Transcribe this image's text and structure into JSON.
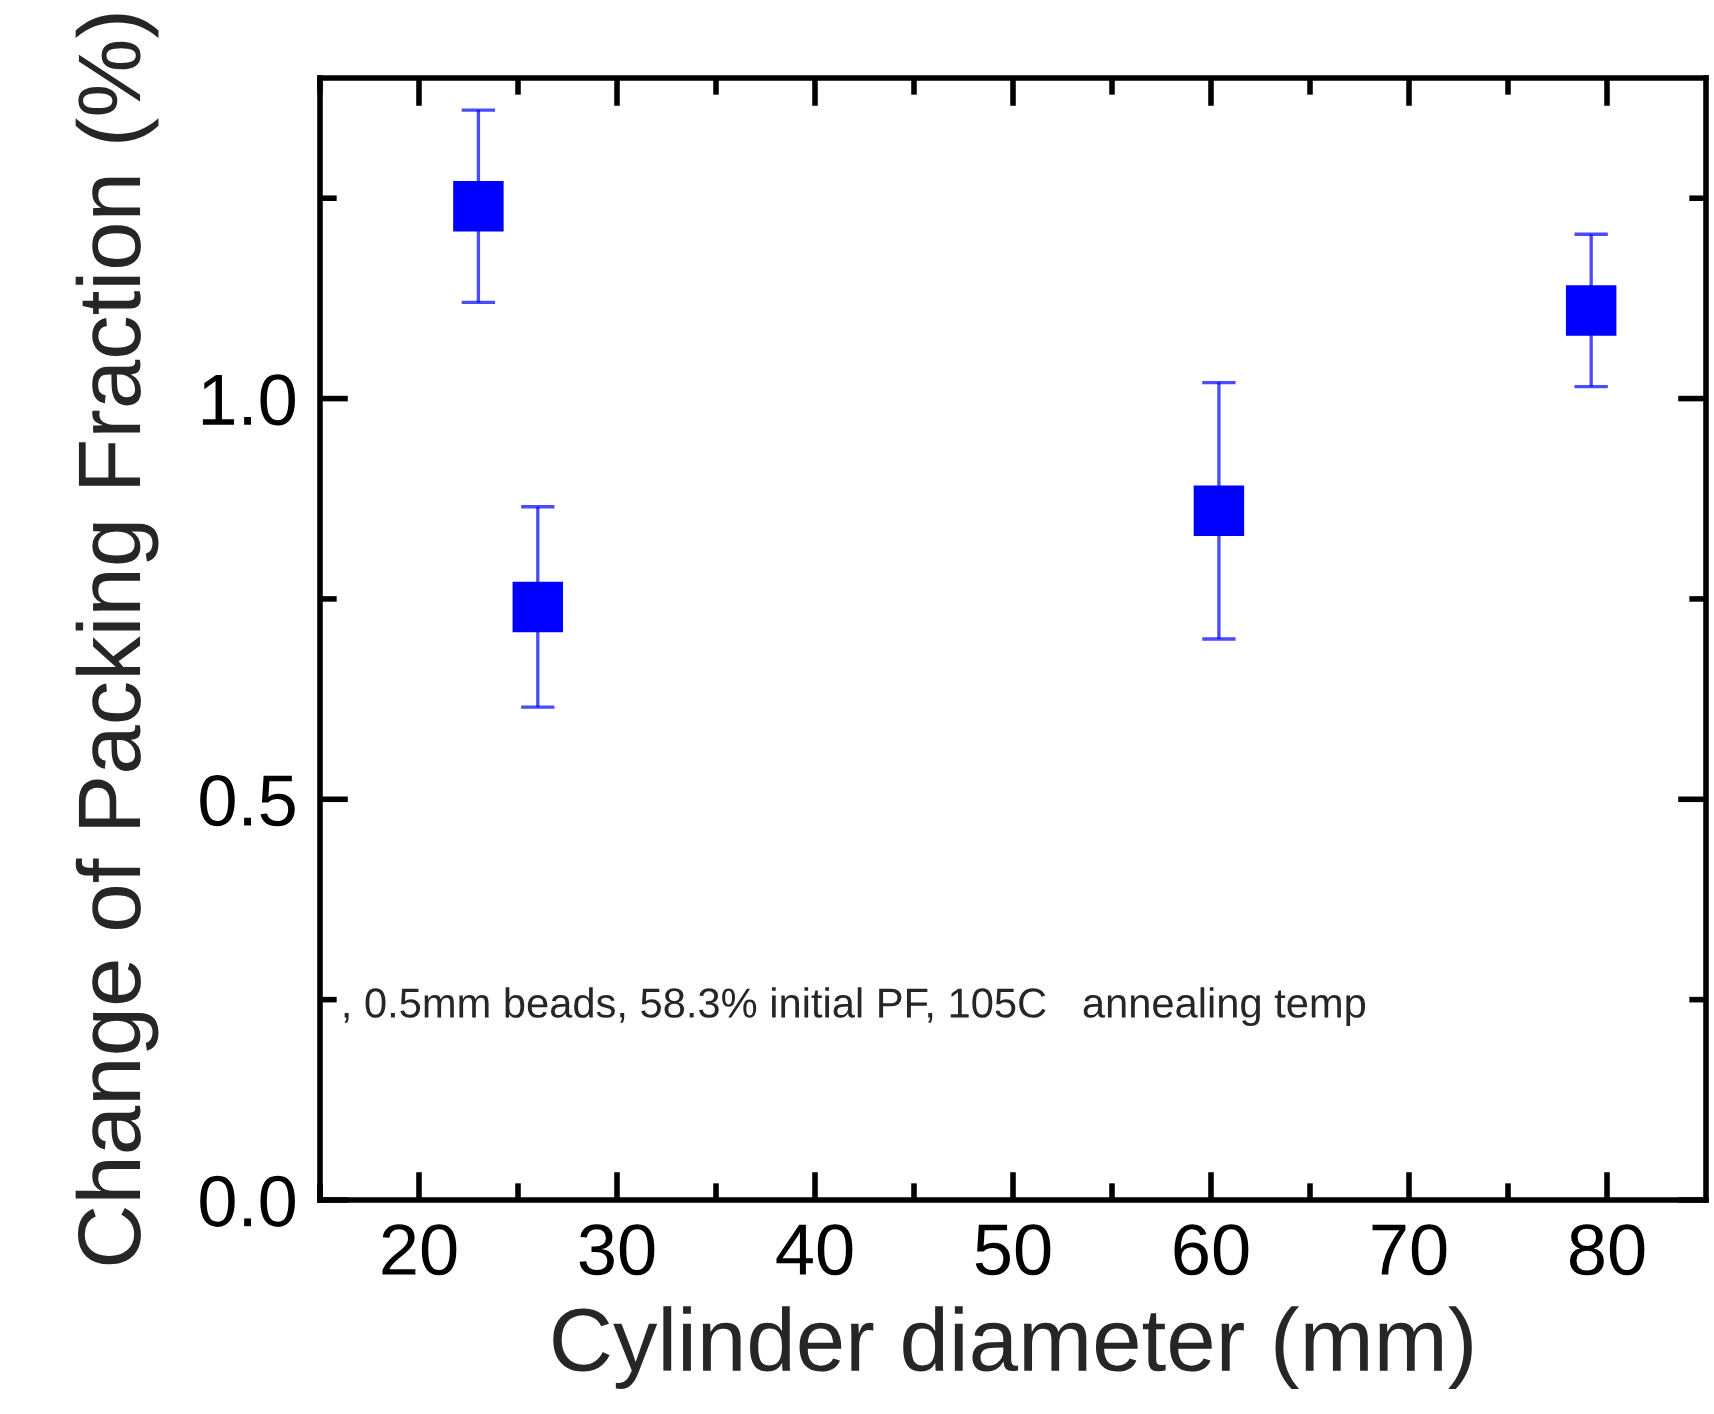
{
  "chart_data": {
    "type": "scatter",
    "xlabel": "Cylinder diameter (mm)",
    "ylabel": "Change of Packing Fraction (%)",
    "x": [
      23.0,
      26.0,
      60.4,
      79.2
    ],
    "values": [
      1.24,
      0.74,
      0.86,
      1.11
    ],
    "errors": [
      0.12,
      0.125,
      0.16,
      0.095
    ],
    "color": "#0000ff",
    "marker": "square",
    "xlim": [
      15,
      85
    ],
    "xticks": [
      {
        "value": 15,
        "label": null
      },
      20,
      {
        "value": 25,
        "label": null
      },
      30,
      {
        "value": 35,
        "label": null
      },
      40,
      {
        "value": 45,
        "label": null
      },
      50,
      {
        "value": 55,
        "label": null
      },
      60,
      {
        "value": 65,
        "label": null
      },
      70,
      {
        "value": 75,
        "label": null
      },
      80
    ],
    "ylim": [
      0.0,
      1.4
    ],
    "yticks": [
      {
        "value": 0.0,
        "label": "0.0"
      },
      {
        "value": 0.25,
        "label": null
      },
      {
        "value": 0.5,
        "label": "0.5"
      },
      {
        "value": 0.75,
        "label": null
      },
      {
        "value": 1.0,
        "label": "1.0"
      },
      {
        "value": 1.25,
        "label": null
      }
    ],
    "annotations": [
      ", 0.5mm beads, 58.3% initial PF, 105C   annealing temp"
    ],
    "grid": false,
    "legend": false
  }
}
